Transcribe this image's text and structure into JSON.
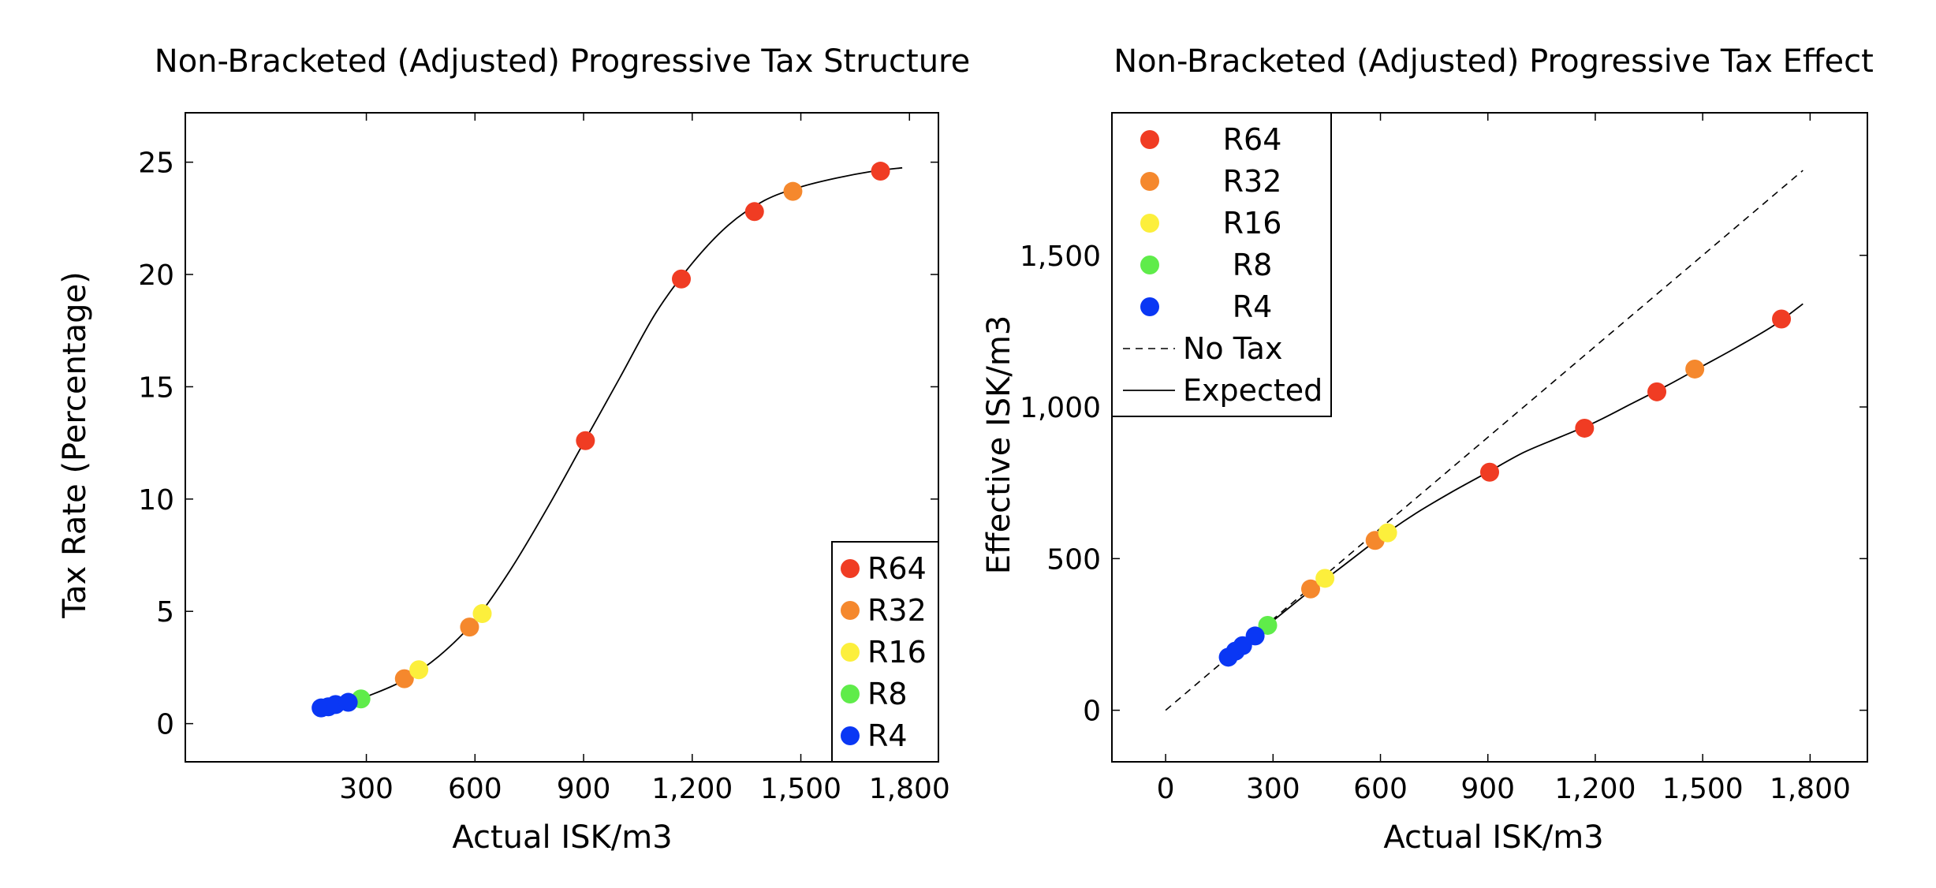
{
  "colors": {
    "R64": "#f03c23",
    "R32": "#f5882d",
    "R16": "#fcef3c",
    "R8": "#5fec4a",
    "R4": "#0a37f4"
  },
  "chart_data": [
    {
      "type": "scatter",
      "title": "Non-Bracketed (Adjusted) Progressive Tax Structure",
      "xlabel": "Actual ISK/m3",
      "ylabel": "Tax Rate (Percentage)",
      "xlim": [
        -200,
        1880
      ],
      "ylim": [
        -1.7,
        27.2
      ],
      "xticks": [
        300,
        600,
        900,
        1200,
        1500,
        1800
      ],
      "xtick_labels": [
        "300",
        "600",
        "900",
        "1,200",
        "1,500",
        "1,800"
      ],
      "yticks": [
        0,
        5,
        10,
        15,
        20,
        25
      ],
      "ytick_labels": [
        "0",
        "5",
        "10",
        "15",
        "20",
        "25"
      ],
      "grid": false,
      "legend_position": "bottom-right",
      "legend": [
        "R64",
        "R32",
        "R16",
        "R8",
        "R4"
      ],
      "series": [
        {
          "name": "R64",
          "x": [
            905,
            1170,
            1372,
            1720
          ],
          "y": [
            12.6,
            19.8,
            22.8,
            24.6
          ]
        },
        {
          "name": "R32",
          "x": [
            405,
            585,
            1478
          ],
          "y": [
            2.0,
            4.3,
            23.7
          ]
        },
        {
          "name": "R16",
          "x": [
            445,
            620
          ],
          "y": [
            2.4,
            4.9
          ]
        },
        {
          "name": "R8",
          "x": [
            285
          ],
          "y": [
            1.1
          ]
        },
        {
          "name": "R4",
          "x": [
            175,
            195,
            215,
            250
          ],
          "y": [
            0.7,
            0.75,
            0.85,
            0.95
          ]
        }
      ],
      "curve": {
        "x": [
          175,
          250,
          300,
          400,
          500,
          600,
          700,
          800,
          900,
          1000,
          1100,
          1200,
          1300,
          1400,
          1500,
          1600,
          1700,
          1780
        ],
        "y": [
          0.7,
          0.9,
          1.2,
          1.9,
          3.0,
          4.6,
          6.9,
          9.6,
          12.5,
          15.4,
          18.3,
          20.5,
          22.2,
          23.3,
          23.9,
          24.3,
          24.6,
          24.75
        ]
      }
    },
    {
      "type": "scatter",
      "title": "Non-Bracketed (Adjusted) Progressive Tax Effect",
      "xlabel": "Actual ISK/m3",
      "ylabel": "Effective ISK/m3",
      "xlim": [
        -150,
        1960
      ],
      "ylim": [
        -170,
        1970
      ],
      "xticks": [
        0,
        300,
        600,
        900,
        1200,
        1500,
        1800
      ],
      "xtick_labels": [
        "0",
        "300",
        "600",
        "900",
        "1,200",
        "1,500",
        "1,800"
      ],
      "yticks": [
        0,
        500,
        1000,
        1500
      ],
      "ytick_labels": [
        "0",
        "500",
        "1,000",
        "1,500"
      ],
      "grid": false,
      "legend_position": "top-left",
      "legend": [
        "R64",
        "R32",
        "R16",
        "R8",
        "R4",
        "No Tax",
        "Expected"
      ],
      "series": [
        {
          "name": "R64",
          "x": [
            905,
            1170,
            1372,
            1720
          ],
          "y": [
            785,
            930,
            1050,
            1290
          ]
        },
        {
          "name": "R32",
          "x": [
            405,
            585,
            1478
          ],
          "y": [
            400,
            560,
            1125
          ]
        },
        {
          "name": "R16",
          "x": [
            445,
            620
          ],
          "y": [
            435,
            585
          ]
        },
        {
          "name": "R8",
          "x": [
            285
          ],
          "y": [
            280
          ]
        },
        {
          "name": "R4",
          "x": [
            175,
            195,
            215,
            250
          ],
          "y": [
            175,
            195,
            213,
            245
          ]
        }
      ],
      "no_tax_line": {
        "x": [
          0,
          1780
        ],
        "y": [
          0,
          1780
        ]
      },
      "curve": {
        "x": [
          175,
          300,
          400,
          500,
          600,
          700,
          800,
          900,
          1000,
          1100,
          1200,
          1300,
          1400,
          1500,
          1600,
          1700,
          1780
        ],
        "y": [
          175,
          295,
          390,
          480,
          570,
          650,
          720,
          785,
          850,
          900,
          950,
          1010,
          1070,
          1135,
          1200,
          1270,
          1340
        ]
      }
    }
  ]
}
